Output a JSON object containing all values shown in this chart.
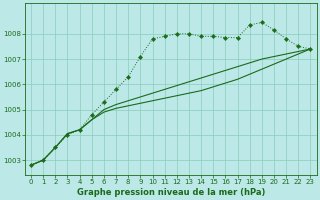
{
  "xlabel": "Graphe pression niveau de la mer (hPa)",
  "background_color": "#bde8e8",
  "grid_color": "#88ccbb",
  "line_color": "#1a6b1a",
  "ylim": [
    1002.4,
    1009.2
  ],
  "xlim": [
    -0.5,
    23.5
  ],
  "yticks": [
    1003,
    1004,
    1005,
    1006,
    1007,
    1008
  ],
  "xticks": [
    0,
    1,
    2,
    3,
    4,
    5,
    6,
    7,
    8,
    9,
    10,
    11,
    12,
    13,
    14,
    15,
    16,
    17,
    18,
    19,
    20,
    21,
    22,
    23
  ],
  "series1_x": [
    0,
    1,
    2,
    3,
    4,
    5,
    6,
    7,
    8,
    9,
    10,
    11,
    12,
    13,
    14,
    15,
    16,
    17,
    18,
    19,
    20,
    21,
    22,
    23
  ],
  "series1_y": [
    1002.8,
    1003.0,
    1003.5,
    1004.0,
    1004.2,
    1004.8,
    1005.3,
    1005.8,
    1006.3,
    1007.1,
    1007.8,
    1007.9,
    1008.0,
    1008.0,
    1007.9,
    1007.9,
    1007.85,
    1007.85,
    1008.35,
    1008.45,
    1008.15,
    1007.8,
    1007.5,
    1007.4
  ],
  "series2_x": [
    0,
    1,
    2,
    3,
    4,
    5,
    6,
    7,
    8,
    9,
    10,
    11,
    12,
    13,
    14,
    15,
    16,
    17,
    18,
    19,
    20,
    21,
    22,
    23
  ],
  "series2_y": [
    1002.8,
    1003.0,
    1003.5,
    1004.05,
    1004.2,
    1004.6,
    1005.0,
    1005.2,
    1005.35,
    1005.5,
    1005.65,
    1005.8,
    1005.95,
    1006.1,
    1006.25,
    1006.4,
    1006.55,
    1006.7,
    1006.85,
    1007.0,
    1007.1,
    1007.2,
    1007.3,
    1007.4
  ],
  "series3_x": [
    0,
    1,
    2,
    3,
    4,
    5,
    6,
    7,
    8,
    9,
    10,
    11,
    12,
    13,
    14,
    15,
    16,
    17,
    18,
    19,
    20,
    21,
    22,
    23
  ],
  "series3_y": [
    1002.8,
    1003.0,
    1003.5,
    1004.05,
    1004.2,
    1004.6,
    1004.9,
    1005.05,
    1005.15,
    1005.25,
    1005.35,
    1005.45,
    1005.55,
    1005.65,
    1005.75,
    1005.9,
    1006.05,
    1006.2,
    1006.4,
    1006.6,
    1006.8,
    1007.0,
    1007.2,
    1007.4
  ],
  "tick_fontsize": 5,
  "xlabel_fontsize": 6,
  "tick_color": "#1a6b1a",
  "spine_color": "#1a6b1a"
}
